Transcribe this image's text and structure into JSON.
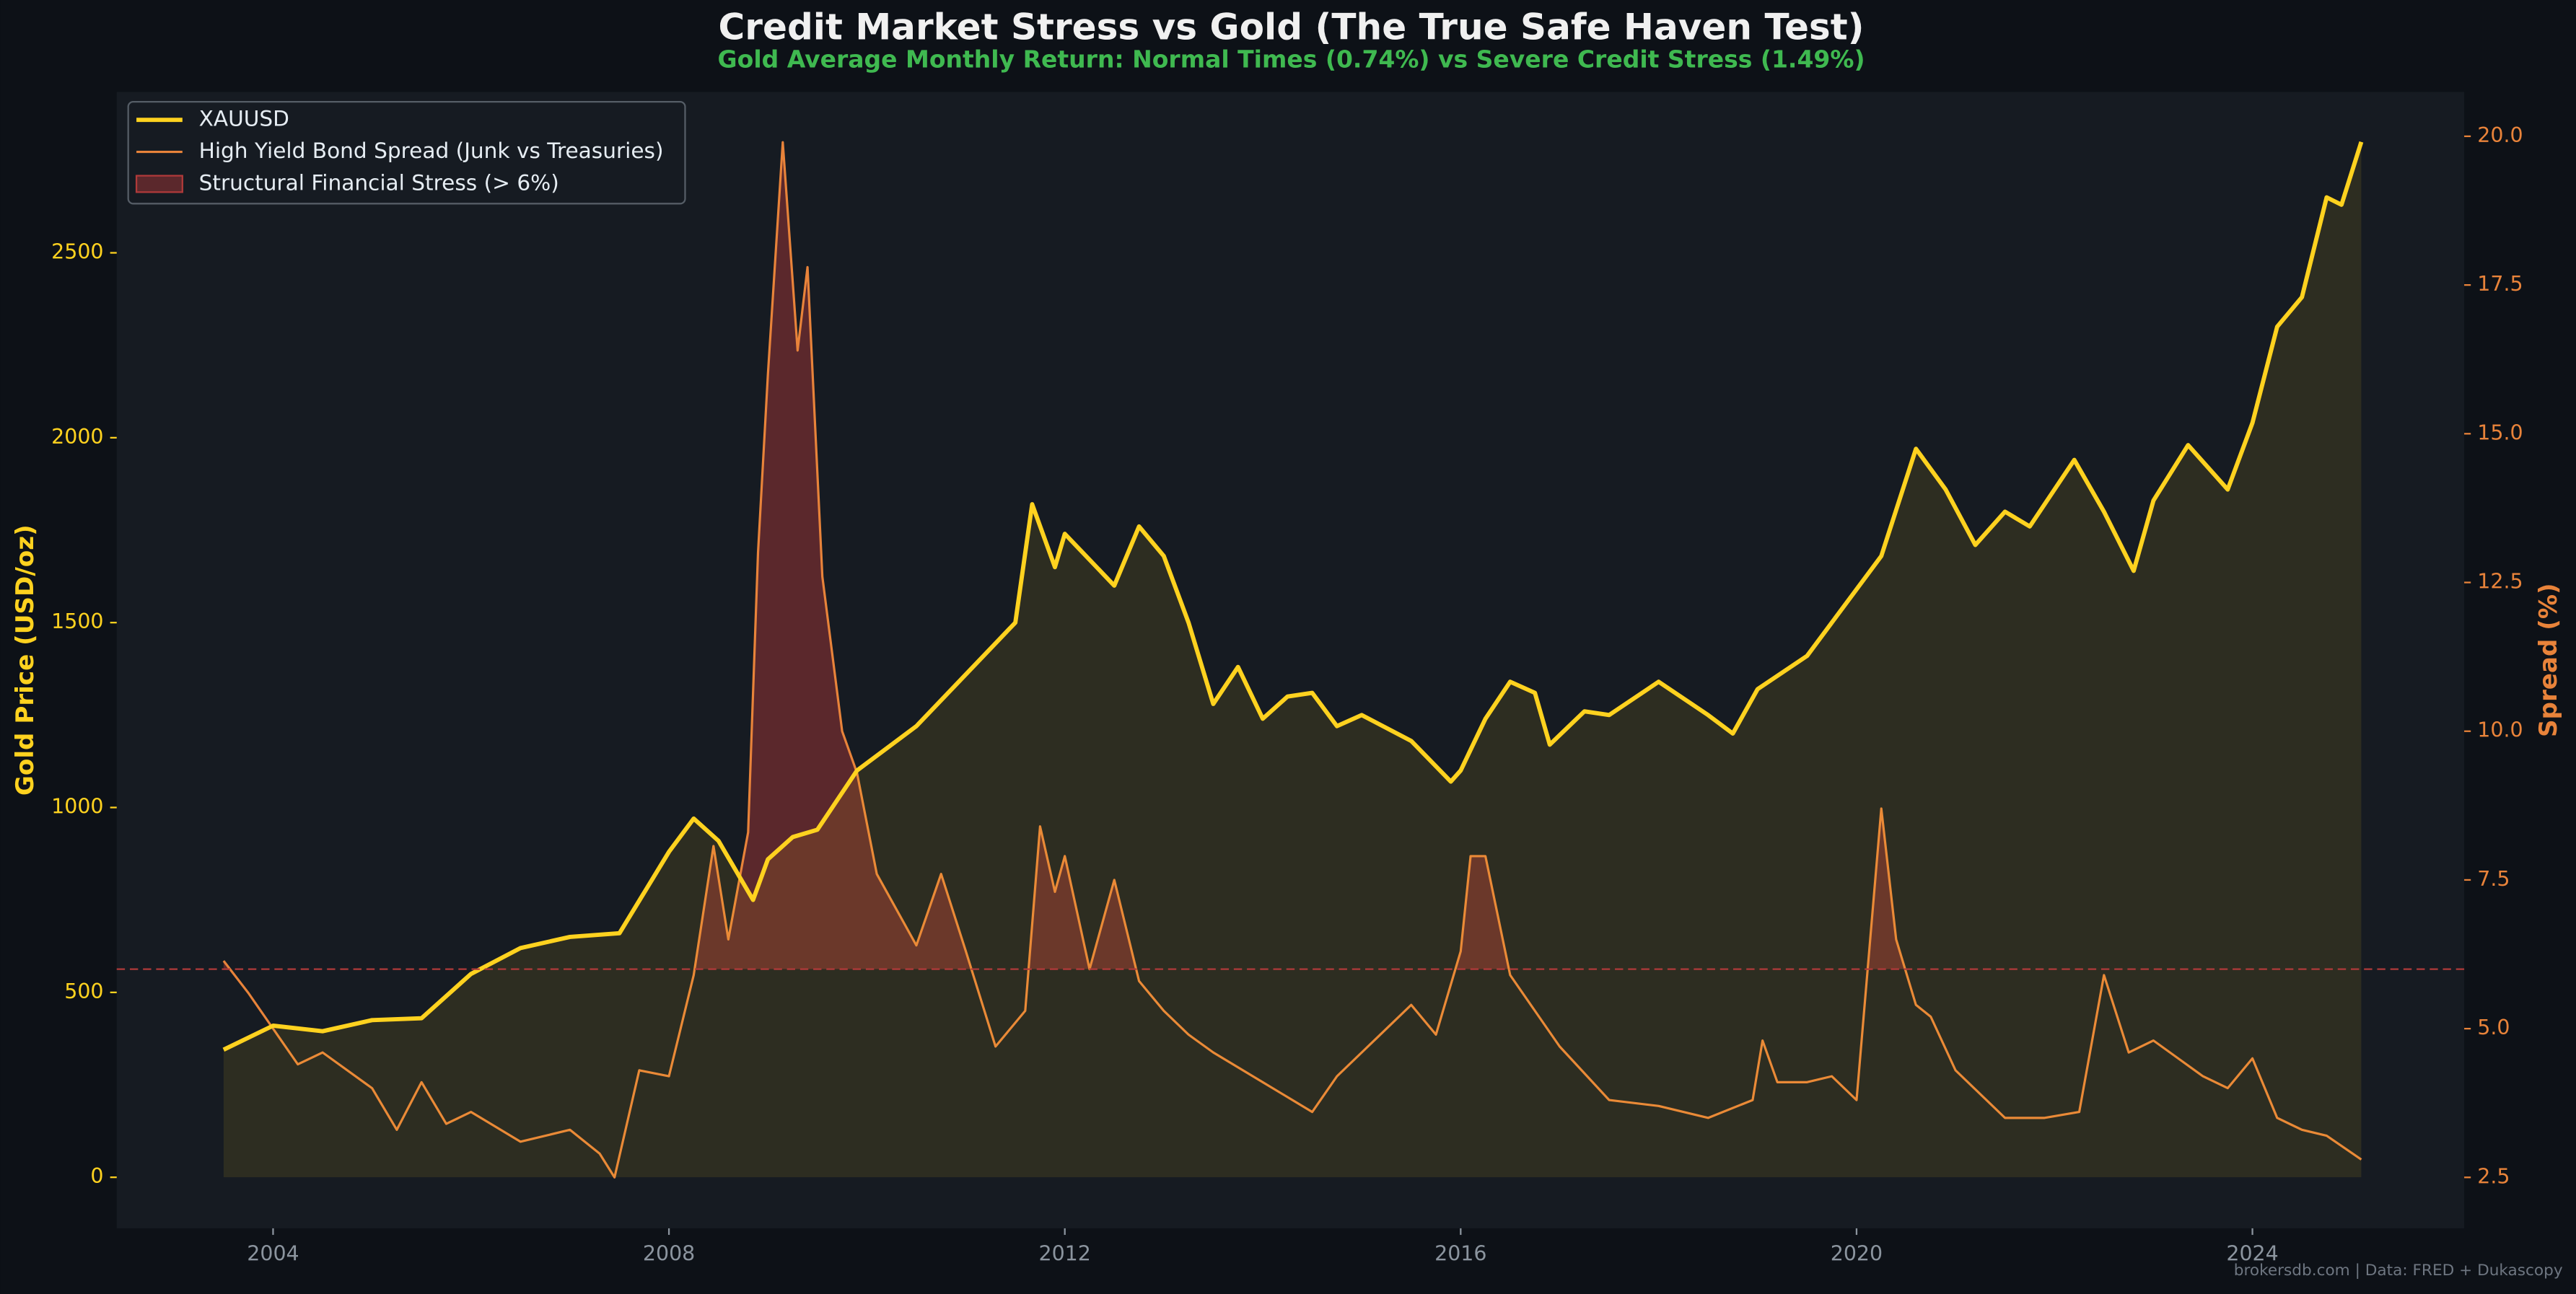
{
  "chart_data": {
    "type": "line",
    "title": "Credit Market Stress vs Gold (The True Safe Haven Test)",
    "subtitle": "Gold Average Monthly Return: Normal Times (0.74%) vs Severe Credit Stress (1.49%)",
    "ylabel": "Gold Price (USD/oz)",
    "y2label": "Spread (%)",
    "footer": "brokersdb.com  |  Data: FRED + Dukascopy",
    "xlim": [
      2002.42,
      2026.14
    ],
    "xticks": [
      2004,
      2008,
      2012,
      2016,
      2020,
      2024
    ],
    "ylim": [
      -138,
      2935
    ],
    "yticks": [
      0,
      500,
      1000,
      1500,
      2000,
      2500
    ],
    "y2lim": [
      1.644,
      20.745
    ],
    "y2ticks": [
      2.5,
      {
        "value": 5,
        "label": "5.0"
      },
      7.5,
      {
        "value": 10,
        "label": "10.0"
      },
      12.5,
      {
        "value": 15,
        "label": "15.0"
      },
      17.5,
      {
        "value": 20,
        "label": "20.0"
      }
    ],
    "threshold": {
      "value": 6,
      "axis": "y2",
      "name": "Structural Financial Stress (> 6%)",
      "color": "#b03a3a"
    },
    "legend": "upper left",
    "series": [
      {
        "name": "XAUUSD",
        "color": "#ffd21f",
        "x": [
          2003.5,
          2004.0,
          2004.5,
          2005.0,
          2005.5,
          2006.0,
          2006.5,
          2007.0,
          2007.5,
          2008.0,
          2008.25,
          2008.5,
          2008.85,
          2009.0,
          2009.25,
          2009.5,
          2009.9,
          2010.0,
          2010.5,
          2011.0,
          2011.5,
          2011.67,
          2011.9,
          2012.0,
          2012.5,
          2012.75,
          2013.0,
          2013.25,
          2013.5,
          2013.75,
          2014.0,
          2014.25,
          2014.5,
          2014.75,
          2015.0,
          2015.5,
          2015.9,
          2016.0,
          2016.25,
          2016.5,
          2016.75,
          2016.9,
          2017.25,
          2017.5,
          2018.0,
          2018.5,
          2018.75,
          2019.0,
          2019.5,
          2019.75,
          2020.0,
          2020.25,
          2020.6,
          2020.9,
          2021.2,
          2021.5,
          2021.75,
          2022.2,
          2022.5,
          2022.8,
          2023.0,
          2023.35,
          2023.75,
          2024.0,
          2024.25,
          2024.5,
          2024.75,
          2024.9,
          2025.1
        ],
        "values": [
          345,
          410,
          395,
          425,
          430,
          550,
          620,
          650,
          660,
          880,
          970,
          910,
          750,
          860,
          920,
          940,
          1100,
          1120,
          1220,
          1360,
          1500,
          1820,
          1650,
          1740,
          1600,
          1760,
          1680,
          1500,
          1280,
          1380,
          1240,
          1300,
          1310,
          1220,
          1250,
          1180,
          1070,
          1100,
          1240,
          1340,
          1310,
          1170,
          1260,
          1250,
          1340,
          1250,
          1200,
          1320,
          1410,
          1500,
          1590,
          1680,
          1970,
          1860,
          1710,
          1800,
          1760,
          1940,
          1800,
          1640,
          1830,
          1980,
          1860,
          2040,
          2300,
          2380,
          2650,
          2630,
          2800
        ]
      },
      {
        "name": "High Yield Bond Spread (Junk vs Treasuries)",
        "color": "#e8833a",
        "axis": "y2",
        "x": [
          2003.5,
          2003.75,
          2004.0,
          2004.25,
          2004.5,
          2005.0,
          2005.25,
          2005.5,
          2005.75,
          2006.0,
          2006.5,
          2007.0,
          2007.3,
          2007.45,
          2007.7,
          2008.0,
          2008.25,
          2008.45,
          2008.6,
          2008.8,
          2008.9,
          2009.0,
          2009.15,
          2009.3,
          2009.4,
          2009.55,
          2009.75,
          2009.9,
          2010.1,
          2010.5,
          2010.75,
          2011.0,
          2011.3,
          2011.6,
          2011.75,
          2011.9,
          2012.0,
          2012.25,
          2012.5,
          2012.75,
          2013.0,
          2013.25,
          2013.5,
          2014.0,
          2014.5,
          2014.75,
          2015.0,
          2015.5,
          2015.75,
          2016.0,
          2016.1,
          2016.25,
          2016.5,
          2016.75,
          2017.0,
          2017.5,
          2018.0,
          2018.5,
          2018.95,
          2019.05,
          2019.2,
          2019.5,
          2019.75,
          2020.0,
          2020.25,
          2020.4,
          2020.6,
          2020.75,
          2021.0,
          2021.5,
          2021.9,
          2022.25,
          2022.5,
          2022.75,
          2023.0,
          2023.25,
          2023.5,
          2023.75,
          2024.0,
          2024.25,
          2024.5,
          2024.75,
          2025.1
        ],
        "values": [
          6.14,
          5.6,
          5.0,
          4.4,
          4.6,
          4.0,
          3.3,
          4.1,
          3.4,
          3.6,
          3.1,
          3.3,
          2.9,
          2.5,
          4.3,
          4.2,
          5.9,
          8.07,
          6.5,
          8.3,
          13.0,
          16.0,
          19.9,
          16.4,
          17.8,
          12.6,
          10.0,
          9.3,
          7.6,
          6.4,
          7.6,
          6.3,
          4.7,
          5.3,
          8.4,
          7.3,
          7.9,
          6.0,
          7.5,
          5.8,
          5.3,
          4.9,
          4.6,
          4.1,
          3.6,
          4.2,
          4.6,
          5.4,
          4.9,
          6.3,
          7.9,
          7.9,
          5.9,
          5.3,
          4.7,
          3.8,
          3.7,
          3.5,
          3.8,
          4.8,
          4.1,
          4.1,
          4.2,
          3.8,
          8.7,
          6.5,
          5.4,
          5.2,
          4.3,
          3.5,
          3.5,
          3.6,
          5.9,
          4.6,
          4.8,
          4.5,
          4.2,
          4.0,
          4.5,
          3.5,
          3.3,
          3.2,
          2.8
        ]
      }
    ]
  }
}
